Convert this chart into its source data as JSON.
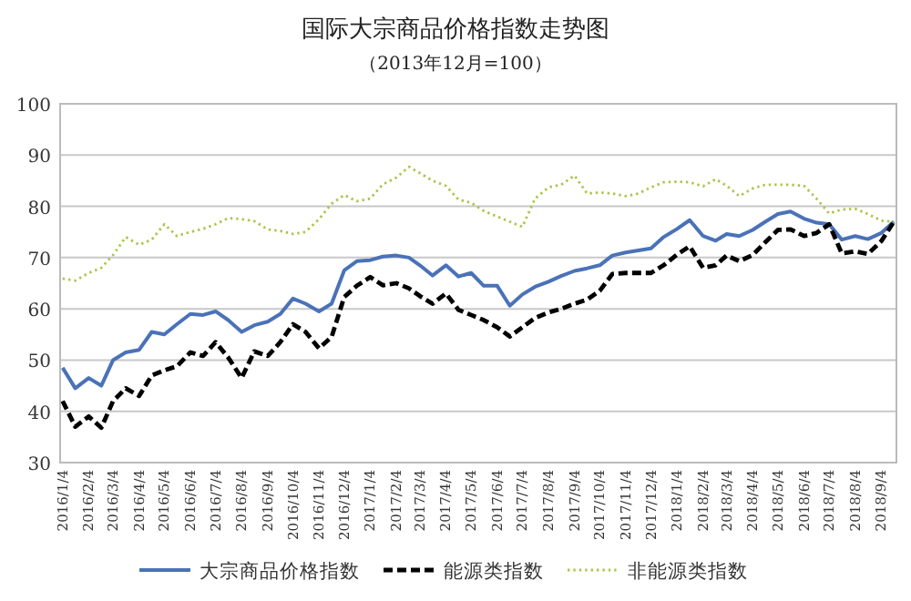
{
  "chart_data": {
    "type": "line",
    "title": "国际大宗商品价格指数走势图",
    "subtitle": "（2013年12月=100）",
    "x": [
      "2016-01-04",
      "2016-01-19",
      "2016-02-04",
      "2016-02-19",
      "2016-03-04",
      "2016-03-19",
      "2016-04-04",
      "2016-04-19",
      "2016-05-04",
      "2016-05-19",
      "2016-06-04",
      "2016-06-19",
      "2016-07-04",
      "2016-07-19",
      "2016-08-04",
      "2016-08-19",
      "2016-09-04",
      "2016-09-19",
      "2016-10-04",
      "2016-10-19",
      "2016-11-04",
      "2016-11-19",
      "2016-12-04",
      "2016-12-19",
      "2017-01-04",
      "2017-01-19",
      "2017-02-04",
      "2017-02-19",
      "2017-03-04",
      "2017-03-19",
      "2017-04-04",
      "2017-04-19",
      "2017-05-04",
      "2017-05-19",
      "2017-06-04",
      "2017-06-19",
      "2017-07-04",
      "2017-07-19",
      "2017-08-04",
      "2017-08-19",
      "2017-09-04",
      "2017-09-19",
      "2017-10-04",
      "2017-10-19",
      "2017-11-04",
      "2017-11-19",
      "2017-12-04",
      "2017-12-19",
      "2018-01-04",
      "2018-01-19",
      "2018-02-04",
      "2018-02-19",
      "2018-03-04",
      "2018-03-19",
      "2018-04-04",
      "2018-04-19",
      "2018-05-04",
      "2018-05-19",
      "2018-06-04",
      "2018-06-19",
      "2018-07-04",
      "2018-07-19",
      "2018-08-04",
      "2018-08-19",
      "2018-09-04",
      "2018-09-19"
    ],
    "series": [
      {
        "name": "大宗商品价格指数",
        "color": "#4a72b8",
        "line_style": "solid",
        "values": [
          48.5,
          44.5,
          46.5,
          45,
          50,
          51.5,
          52,
          55.5,
          55,
          57,
          59,
          58.8,
          59.5,
          57.8,
          55.5,
          56.8,
          57.5,
          59,
          62,
          61,
          59.5,
          61,
          67.5,
          69.3,
          69.5,
          70.2,
          70.4,
          70,
          68.5,
          66.5,
          68.5,
          66.3,
          67,
          64.5,
          64.5,
          60.6,
          62.8,
          64.3,
          65.3,
          66.4,
          67.4,
          67.9,
          68.5,
          70.4,
          71,
          71.4,
          71.8,
          74,
          75.6,
          77.3,
          74.2,
          73.3,
          74.6,
          74.2,
          75.4,
          77,
          78.5,
          79,
          77.6,
          76.8,
          76.5,
          73.5,
          74.2,
          73.6,
          74.8,
          77
        ]
      },
      {
        "name": "能源类指数",
        "color": "#000000",
        "line_style": "dashed",
        "values": [
          42,
          37,
          39,
          36.8,
          42,
          44.5,
          43,
          47,
          48,
          48.8,
          51.5,
          50.8,
          53.5,
          50.5,
          46.5,
          51.7,
          50.8,
          53.5,
          57,
          55.5,
          52.3,
          54.5,
          62.3,
          64.5,
          66.2,
          64.6,
          65,
          64,
          62.5,
          61,
          63,
          59.8,
          58.8,
          57.8,
          56.4,
          54.6,
          56.4,
          58.2,
          59.3,
          60,
          61,
          61.8,
          63.5,
          66.8,
          67,
          67,
          67,
          68.5,
          70.6,
          72.2,
          68,
          68.5,
          70.4,
          69.3,
          70.5,
          73,
          75.4,
          75.5,
          74.2,
          74.8,
          76.5,
          70.8,
          71.2,
          70.7,
          73.2,
          77
        ]
      },
      {
        "name": "非能源类指数",
        "color": "#a8c64a",
        "line_style": "dotted",
        "values": [
          65.9,
          65.5,
          67,
          68,
          70.5,
          74,
          72.5,
          73.5,
          76.5,
          74.2,
          75,
          75.6,
          76.5,
          77.7,
          77.5,
          77.1,
          75.5,
          75.2,
          74.6,
          75,
          77.5,
          80.5,
          82.2,
          81,
          81.5,
          84.3,
          85.6,
          87.7,
          86.5,
          85,
          84,
          81.3,
          80.7,
          79.1,
          78,
          77,
          76,
          81.5,
          83.7,
          84.2,
          86,
          82.5,
          82.7,
          82.5,
          82,
          82.5,
          83.7,
          84.7,
          84.8,
          84.7,
          83.9,
          85.3,
          84,
          82,
          83.5,
          84.2,
          84.2,
          84.2,
          84,
          81.5,
          78.6,
          79.4,
          79.5,
          78.5,
          77.2,
          77
        ]
      }
    ],
    "xlim": [
      "2016-01-01",
      "2018-09-22"
    ],
    "xticks": [
      {
        "value": "2016-01-04",
        "label": "2016/1/4"
      },
      {
        "value": "2016-02-04",
        "label": "2016/2/4"
      },
      {
        "value": "2016-03-04",
        "label": "2016/3/4"
      },
      {
        "value": "2016-04-04",
        "label": "2016/4/4"
      },
      {
        "value": "2016-05-04",
        "label": "2016/5/4"
      },
      {
        "value": "2016-06-04",
        "label": "2016/6/4"
      },
      {
        "value": "2016-07-04",
        "label": "2016/7/4"
      },
      {
        "value": "2016-08-04",
        "label": "2016/8/4"
      },
      {
        "value": "2016-09-04",
        "label": "2016/9/4"
      },
      {
        "value": "2016-10-04",
        "label": "2016/10/4"
      },
      {
        "value": "2016-11-04",
        "label": "2016/11/4"
      },
      {
        "value": "2016-12-04",
        "label": "2016/12/4"
      },
      {
        "value": "2017-01-04",
        "label": "2017/1/4"
      },
      {
        "value": "2017-02-04",
        "label": "2017/2/4"
      },
      {
        "value": "2017-03-04",
        "label": "2017/3/4"
      },
      {
        "value": "2017-04-04",
        "label": "2017/4/4"
      },
      {
        "value": "2017-05-04",
        "label": "2017/5/4"
      },
      {
        "value": "2017-06-04",
        "label": "2017/6/4"
      },
      {
        "value": "2017-07-04",
        "label": "2017/7/4"
      },
      {
        "value": "2017-08-04",
        "label": "2017/8/4"
      },
      {
        "value": "2017-09-04",
        "label": "2017/9/4"
      },
      {
        "value": "2017-10-04",
        "label": "2017/10/4"
      },
      {
        "value": "2017-11-04",
        "label": "2017/11/4"
      },
      {
        "value": "2017-12-04",
        "label": "2017/12/4"
      },
      {
        "value": "2018-01-04",
        "label": "2018/1/4"
      },
      {
        "value": "2018-02-04",
        "label": "2018/2/4"
      },
      {
        "value": "2018-03-04",
        "label": "2018/3/4"
      },
      {
        "value": "2018-04-04",
        "label": "2018/4/4"
      },
      {
        "value": "2018-05-04",
        "label": "2018/5/4"
      },
      {
        "value": "2018-06-04",
        "label": "2018/6/4"
      },
      {
        "value": "2018-07-04",
        "label": "2018/7/4"
      },
      {
        "value": "2018-08-04",
        "label": "2018/8/4"
      },
      {
        "value": "2018-09-04",
        "label": "2018/9/4"
      }
    ],
    "ylim": [
      30,
      100
    ],
    "yticks": [
      30,
      40,
      50,
      60,
      70,
      80,
      90,
      100
    ],
    "grid": "y",
    "legend": "bottom",
    "marker": "none"
  }
}
